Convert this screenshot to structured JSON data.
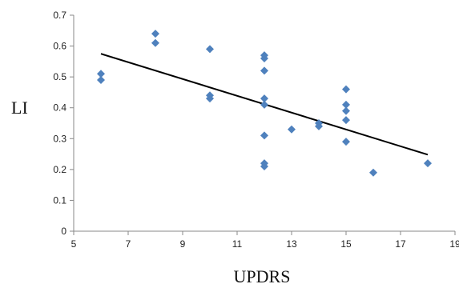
{
  "chart_data": {
    "type": "scatter",
    "title": "",
    "xlabel": "UPDRS",
    "ylabel": "LI",
    "xlim": [
      5,
      19
    ],
    "ylim": [
      0,
      0.7
    ],
    "xticks": [
      "5",
      "7",
      "9",
      "11",
      "13",
      "15",
      "17",
      "19"
    ],
    "yticks": [
      "0",
      "0.1",
      "0.2",
      "0.3",
      "0.4",
      "0.5",
      "0.6",
      "0.7"
    ],
    "grid": false,
    "legend": "none",
    "marker": "diamond",
    "colors": {
      "points": "#4f81bd",
      "trendline": "#000000",
      "axis": "#888888"
    },
    "series": [
      {
        "points": [
          {
            "x": 6,
            "y": 0.51
          },
          {
            "x": 6,
            "y": 0.49
          },
          {
            "x": 8,
            "y": 0.64
          },
          {
            "x": 8,
            "y": 0.61
          },
          {
            "x": 10,
            "y": 0.59
          },
          {
            "x": 10,
            "y": 0.44
          },
          {
            "x": 10,
            "y": 0.43
          },
          {
            "x": 12,
            "y": 0.57
          },
          {
            "x": 12,
            "y": 0.56
          },
          {
            "x": 12,
            "y": 0.52
          },
          {
            "x": 12,
            "y": 0.43
          },
          {
            "x": 12,
            "y": 0.41
          },
          {
            "x": 12,
            "y": 0.31
          },
          {
            "x": 12,
            "y": 0.22
          },
          {
            "x": 12,
            "y": 0.21
          },
          {
            "x": 13,
            "y": 0.33
          },
          {
            "x": 14,
            "y": 0.35
          },
          {
            "x": 14,
            "y": 0.34
          },
          {
            "x": 15,
            "y": 0.46
          },
          {
            "x": 15,
            "y": 0.41
          },
          {
            "x": 15,
            "y": 0.39
          },
          {
            "x": 15,
            "y": 0.36
          },
          {
            "x": 15,
            "y": 0.29
          },
          {
            "x": 16,
            "y": 0.19
          },
          {
            "x": 18,
            "y": 0.22
          }
        ]
      }
    ],
    "trendline": {
      "x": [
        6,
        18
      ],
      "y": [
        0.575,
        0.248
      ]
    }
  }
}
